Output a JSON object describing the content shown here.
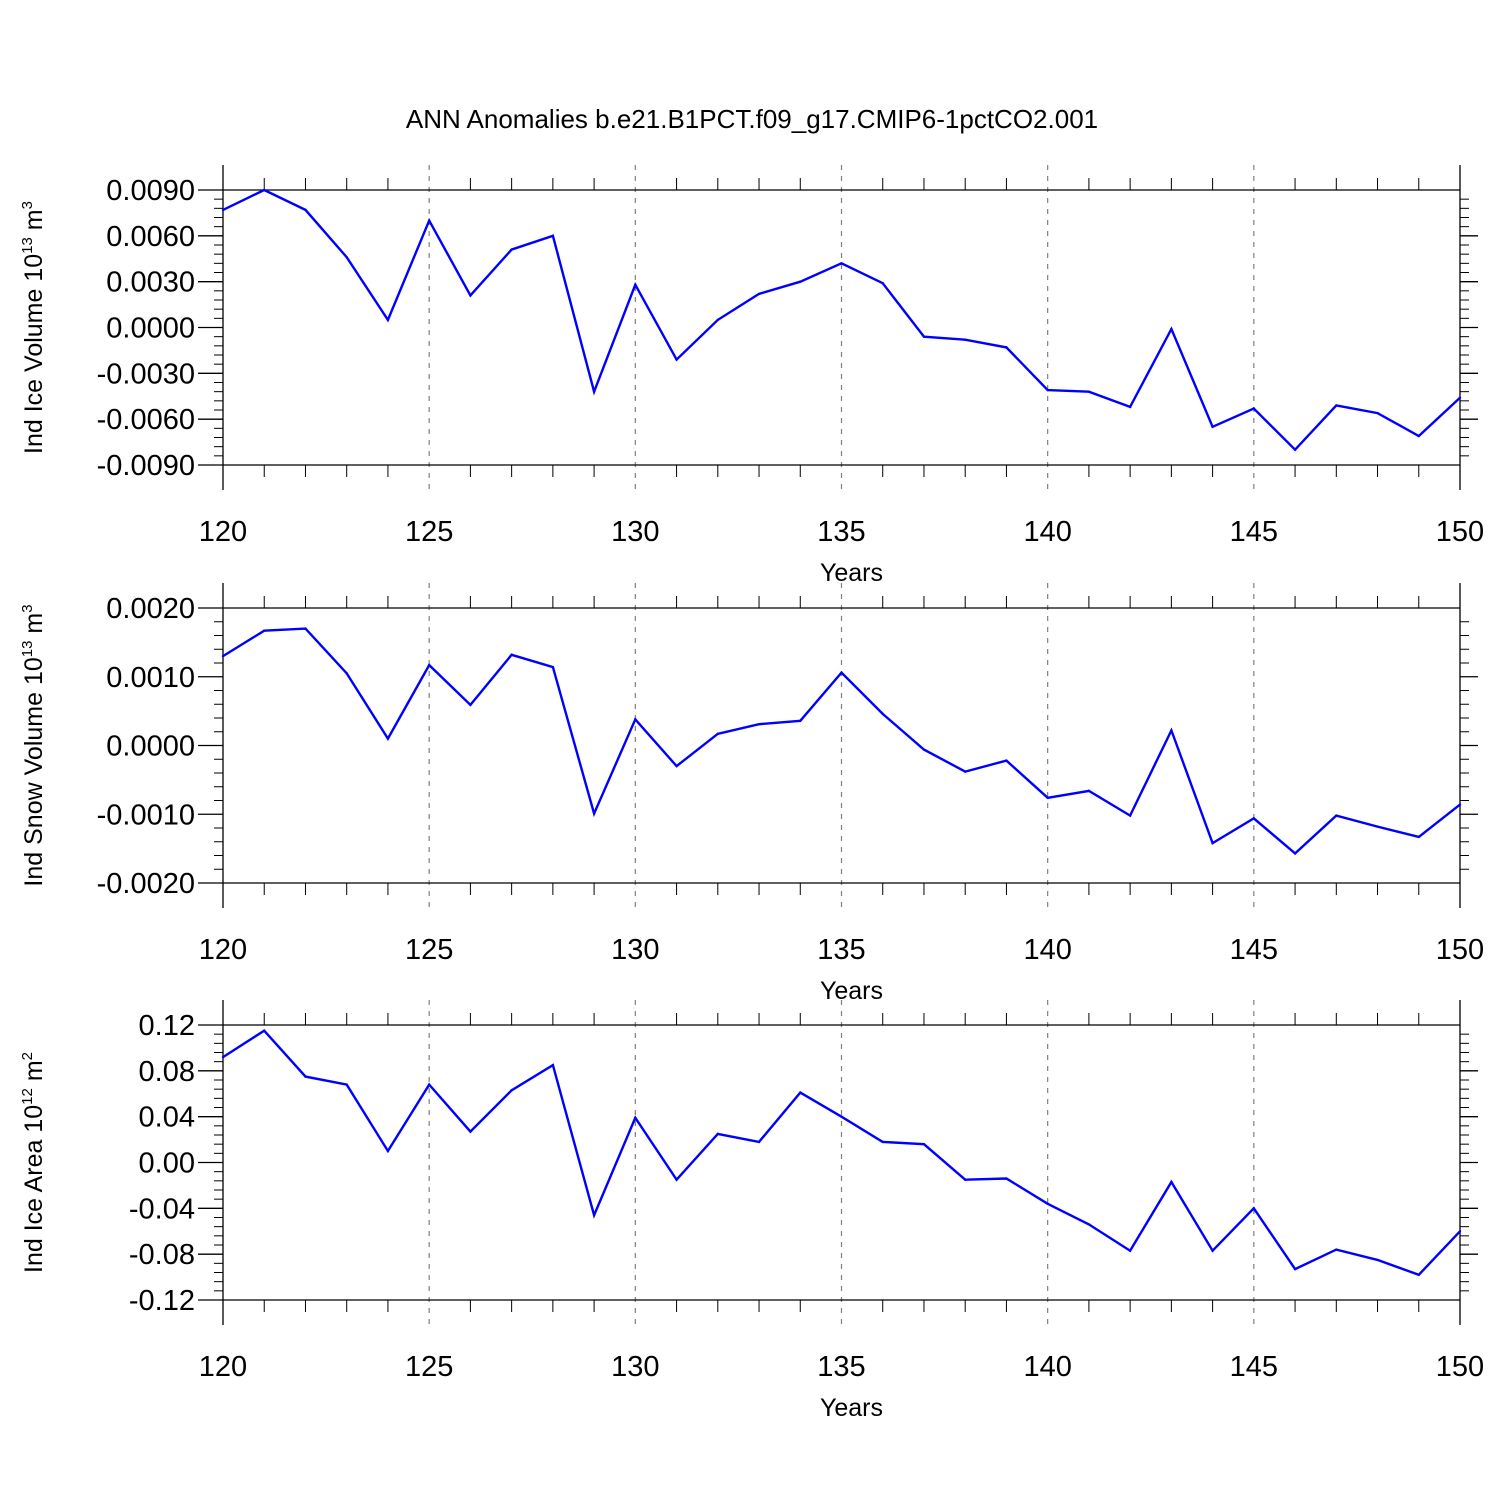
{
  "title": "ANN Anomalies b.e21.B1PCT.f09_g17.CMIP6-1pctCO2.001",
  "colors": {
    "series": "#0000ff",
    "axes": "#000000",
    "grid": "#808080",
    "background": "#ffffff"
  },
  "chart_data": [
    {
      "type": "line",
      "xlabel": "Years",
      "ylabel": {
        "base": "Ind Ice Volume 10",
        "exp": "13",
        "unit": " m",
        "unit_exp": "3"
      },
      "xlim": [
        120,
        150
      ],
      "ylim": [
        -0.009,
        0.009
      ],
      "xticks": [
        120,
        125,
        130,
        135,
        140,
        145,
        150
      ],
      "yticks": [
        0.009,
        0.006,
        0.003,
        0.0,
        -0.003,
        -0.006,
        -0.009
      ],
      "ytick_labels": [
        "0.0090",
        "0.0060",
        "0.0030",
        "0.0000",
        "-0.0030",
        "-0.0060",
        "-0.0090"
      ],
      "grid": "vertical dashed at major x ticks",
      "x": [
        120,
        121,
        122,
        123,
        124,
        125,
        126,
        127,
        128,
        129,
        130,
        131,
        132,
        133,
        134,
        135,
        136,
        137,
        138,
        139,
        140,
        141,
        142,
        143,
        144,
        145,
        146,
        147,
        148,
        149,
        150
      ],
      "values": [
        0.0077,
        0.009,
        0.0077,
        0.0046,
        0.0005,
        0.007,
        0.0021,
        0.0051,
        0.006,
        -0.0042,
        0.0028,
        -0.0021,
        0.0005,
        0.0022,
        0.003,
        0.0042,
        0.0029,
        -0.0006,
        -0.0008,
        -0.0013,
        -0.0041,
        -0.0042,
        -0.0052,
        -0.0001,
        -0.0065,
        -0.0053,
        -0.008,
        -0.0051,
        -0.0056,
        -0.0071,
        -0.0046
      ]
    },
    {
      "type": "line",
      "xlabel": "Years",
      "ylabel": {
        "base": "Ind Snow Volume 10",
        "exp": "13",
        "unit": " m",
        "unit_exp": "3"
      },
      "xlim": [
        120,
        150
      ],
      "ylim": [
        -0.002,
        0.002
      ],
      "xticks": [
        120,
        125,
        130,
        135,
        140,
        145,
        150
      ],
      "yticks": [
        0.002,
        0.001,
        0.0,
        -0.001,
        -0.002
      ],
      "ytick_labels": [
        "0.0020",
        "0.0010",
        "0.0000",
        "-0.0010",
        "-0.0020"
      ],
      "grid": "vertical dashed at major x ticks",
      "x": [
        120,
        121,
        122,
        123,
        124,
        125,
        126,
        127,
        128,
        129,
        130,
        131,
        132,
        133,
        134,
        135,
        136,
        137,
        138,
        139,
        140,
        141,
        142,
        143,
        144,
        145,
        146,
        147,
        148,
        149,
        150
      ],
      "values": [
        0.0013,
        0.00167,
        0.0017,
        0.00105,
        0.0001,
        0.00117,
        0.00059,
        0.00132,
        0.00114,
        -0.00099,
        0.00038,
        -0.0003,
        0.00017,
        0.00031,
        0.00036,
        0.00106,
        0.00046,
        -6e-05,
        -0.00038,
        -0.00022,
        -0.00076,
        -0.00066,
        -0.00102,
        0.00022,
        -0.00142,
        -0.00106,
        -0.00157,
        -0.00102,
        -0.00118,
        -0.00133,
        -0.00086
      ]
    },
    {
      "type": "line",
      "xlabel": "Years",
      "ylabel": {
        "base": "Ind Ice Area 10",
        "exp": "12",
        "unit": " m",
        "unit_exp": "2"
      },
      "xlim": [
        120,
        150
      ],
      "ylim": [
        -0.12,
        0.12
      ],
      "xticks": [
        120,
        125,
        130,
        135,
        140,
        145,
        150
      ],
      "yticks": [
        0.12,
        0.08,
        0.04,
        0.0,
        -0.04,
        -0.08,
        -0.12
      ],
      "ytick_labels": [
        "0.12",
        "0.08",
        "0.04",
        "0.00",
        "-0.04",
        "-0.08",
        "-0.12"
      ],
      "grid": "vertical dashed at major x ticks",
      "x": [
        120,
        121,
        122,
        123,
        124,
        125,
        126,
        127,
        128,
        129,
        130,
        131,
        132,
        133,
        134,
        135,
        136,
        137,
        138,
        139,
        140,
        141,
        142,
        143,
        144,
        145,
        146,
        147,
        148,
        149,
        150
      ],
      "values": [
        0.092,
        0.115,
        0.075,
        0.068,
        0.01,
        0.068,
        0.027,
        0.063,
        0.085,
        -0.046,
        0.039,
        -0.015,
        0.025,
        0.018,
        0.061,
        0.04,
        0.018,
        0.016,
        -0.015,
        -0.014,
        -0.036,
        -0.054,
        -0.077,
        -0.017,
        -0.077,
        -0.04,
        -0.093,
        -0.076,
        -0.085,
        -0.098,
        -0.06
      ]
    }
  ]
}
